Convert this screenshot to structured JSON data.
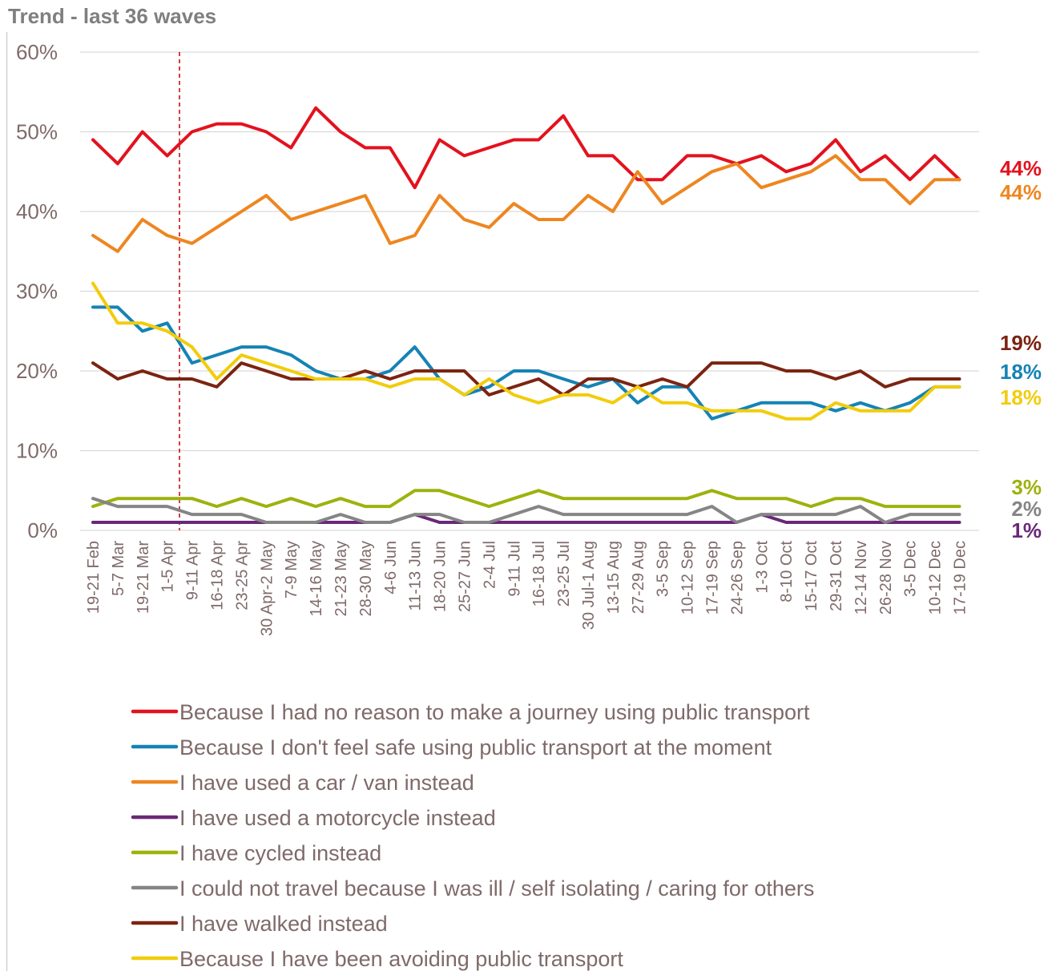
{
  "chart_data": {
    "type": "line",
    "title": "Trend - last 36 waves",
    "ylim": [
      0,
      60
    ],
    "y_ticks": [
      "0%",
      "10%",
      "20%",
      "30%",
      "40%",
      "50%",
      "60%"
    ],
    "grid": true,
    "legend_position": "bottom",
    "reference_line_after": "1-5 Apr",
    "categories": [
      "19-21 Feb",
      "5-7 Mar",
      "19-21 Mar",
      "1-5 Apr",
      "9-11 Apr",
      "16-18 Apr",
      "23-25 Apr",
      "30 Apr-2 May",
      "7-9 May",
      "14-16 May",
      "21-23 May",
      "28-30 May",
      "4-6 Jun",
      "11-13 Jun",
      "18-20 Jun",
      "25-27 Jun",
      "2-4 Jul",
      "9-11 Jul",
      "16-18 Jul",
      "23-25 Jul",
      "30 Jul-1 Aug",
      "13-15 Aug",
      "27-29 Aug",
      "3-5 Sep",
      "10-12 Sep",
      "17-19 Sep",
      "24-26 Sep",
      "1-3 Oct",
      "8-10 Oct",
      "15-17 Oct",
      "29-31 Oct",
      "12-14 Nov",
      "26-28 Nov",
      "3-5 Dec",
      "10-12 Dec",
      "17-19 Dec"
    ],
    "series": [
      {
        "name": "Because I had no reason to make a journey using public transport",
        "color": "#e3121e",
        "end_label": "44%",
        "values": [
          49,
          46,
          50,
          47,
          50,
          51,
          51,
          50,
          48,
          53,
          50,
          48,
          48,
          43,
          49,
          47,
          48,
          49,
          49,
          52,
          47,
          47,
          44,
          44,
          47,
          47,
          46,
          47,
          45,
          46,
          49,
          45,
          47,
          44,
          47,
          44
        ]
      },
      {
        "name": "Because I don't feel safe using public transport at the moment",
        "color": "#1583b5",
        "end_label": "18%",
        "values": [
          28,
          28,
          25,
          26,
          21,
          22,
          23,
          23,
          22,
          20,
          19,
          19,
          20,
          23,
          19,
          17,
          18,
          20,
          20,
          19,
          18,
          19,
          16,
          18,
          18,
          14,
          15,
          16,
          16,
          16,
          15,
          16,
          15,
          16,
          18,
          18
        ]
      },
      {
        "name": "I have used a car / van instead",
        "color": "#ee8620",
        "end_label": "44%",
        "values": [
          37,
          35,
          39,
          37,
          36,
          38,
          40,
          42,
          39,
          40,
          41,
          42,
          36,
          37,
          42,
          39,
          38,
          41,
          39,
          39,
          42,
          40,
          45,
          41,
          43,
          45,
          46,
          43,
          44,
          45,
          47,
          44,
          44,
          41,
          44,
          44
        ]
      },
      {
        "name": "I have used a motorcycle instead",
        "color": "#6a2877",
        "end_label": "1%",
        "values": [
          1,
          1,
          1,
          1,
          1,
          1,
          1,
          1,
          1,
          1,
          1,
          1,
          1,
          2,
          1,
          1,
          1,
          1,
          1,
          1,
          1,
          1,
          1,
          1,
          1,
          1,
          1,
          2,
          1,
          1,
          1,
          1,
          1,
          1,
          1,
          1
        ]
      },
      {
        "name": "I have cycled instead",
        "color": "#9db20d",
        "end_label": "3%",
        "values": [
          3,
          4,
          4,
          4,
          4,
          3,
          4,
          3,
          4,
          3,
          4,
          3,
          3,
          5,
          5,
          4,
          3,
          4,
          5,
          4,
          4,
          4,
          4,
          4,
          4,
          5,
          4,
          4,
          4,
          3,
          4,
          4,
          3,
          3,
          3,
          3
        ]
      },
      {
        "name": "I could not travel because I was ill / self isolating / caring for others",
        "color": "#858585",
        "end_label": "2%",
        "values": [
          4,
          3,
          3,
          3,
          2,
          2,
          2,
          1,
          1,
          1,
          2,
          1,
          1,
          2,
          2,
          1,
          1,
          2,
          3,
          2,
          2,
          2,
          2,
          2,
          2,
          3,
          1,
          2,
          2,
          2,
          2,
          3,
          1,
          2,
          2,
          2
        ]
      },
      {
        "name": "I have walked instead",
        "color": "#7b2411",
        "end_label": "19%",
        "values": [
          21,
          19,
          20,
          19,
          19,
          18,
          21,
          20,
          19,
          19,
          19,
          20,
          19,
          20,
          20,
          20,
          17,
          18,
          19,
          17,
          19,
          19,
          18,
          19,
          18,
          21,
          21,
          21,
          20,
          20,
          19,
          20,
          18,
          19,
          19,
          19
        ]
      },
      {
        "name": "Because I have been avoiding public transport",
        "color": "#f2cc0c",
        "end_label": "18%",
        "values": [
          31,
          26,
          26,
          25,
          23,
          19,
          22,
          21,
          20,
          19,
          19,
          19,
          18,
          19,
          19,
          17,
          19,
          17,
          16,
          17,
          17,
          16,
          18,
          16,
          16,
          15,
          15,
          15,
          14,
          14,
          16,
          15,
          15,
          15,
          18,
          18
        ]
      }
    ],
    "legend_order": [
      0,
      1,
      2,
      3,
      4,
      5,
      6,
      7
    ]
  }
}
